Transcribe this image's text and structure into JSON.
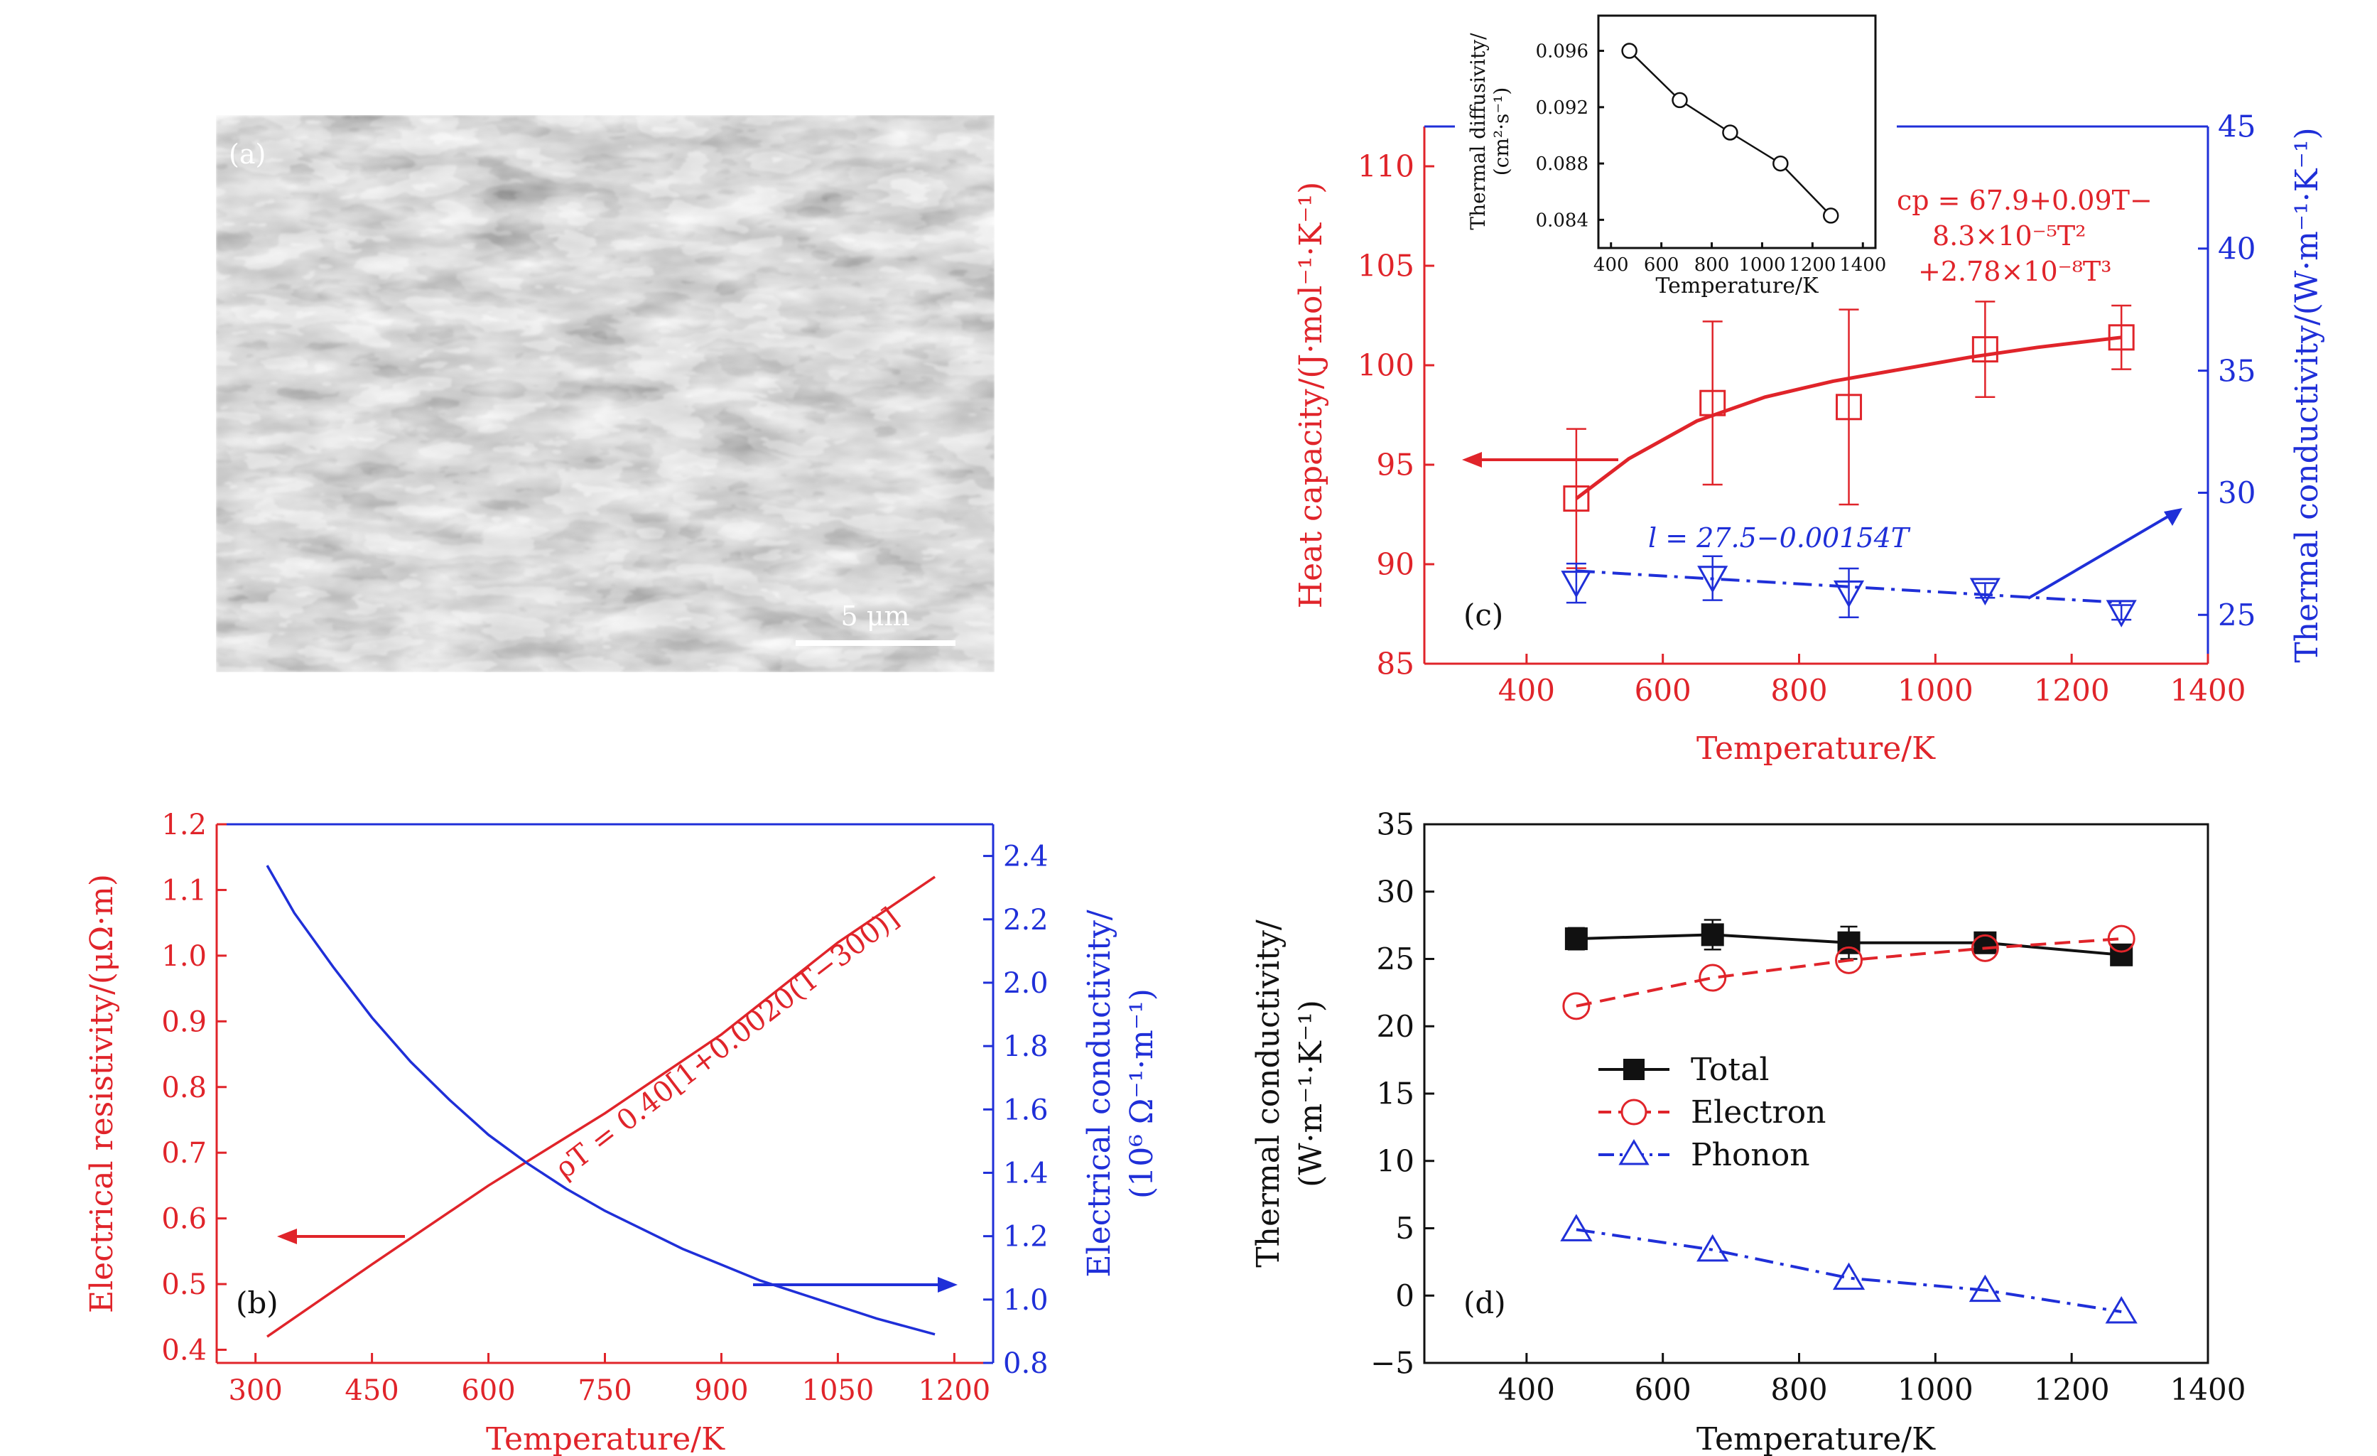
{
  "panels": {
    "a": {
      "label": "(a)",
      "scale_bar": "5 μm"
    },
    "b": {
      "label": "(b)",
      "annotation": "ρT = 0.40[1+0.0020(T−300)]",
      "colors": {
        "left": "#e0242a",
        "right": "#1f2fd8"
      }
    },
    "c": {
      "label": "(c)",
      "cp_formula": [
        "cp = 67.9+0.09T−",
        "8.3×10⁻⁵T²",
        "+2.78×10⁻⁸T³"
      ],
      "l_formula": "l = 27.5−0.00154T",
      "inset": {
        "xlabel": "Temperature/K",
        "ylabel": [
          "Thermal diffusivity/",
          "(cm²·s⁻¹)"
        ]
      }
    },
    "d": {
      "label": "(d)"
    }
  },
  "chart_data": [
    {
      "panel": "b",
      "type": "line",
      "title": "",
      "xlabel": "Temperature/K",
      "ylabel_left": "Electrical resistivity/(μΩ·m)",
      "ylabel_right": [
        "Electrical conductivity/",
        "(10⁶ Ω⁻¹·m⁻¹)"
      ],
      "xlim": [
        250,
        1250
      ],
      "ylim_left": [
        0.38,
        1.2
      ],
      "ylim_right": [
        0.8,
        2.5
      ],
      "xticks": [
        "300",
        "450",
        "600",
        "750",
        "900",
        "1050",
        "1200"
      ],
      "yticks_left": [
        "0.4",
        "0.5",
        "0.6",
        "0.7",
        "0.8",
        "0.9",
        "1.0",
        "1.1",
        "1.2"
      ],
      "yticks_right": [
        "0.8",
        "1.0",
        "1.2",
        "1.4",
        "1.6",
        "1.8",
        "2.0",
        "2.2",
        "2.4"
      ],
      "series": [
        {
          "axis": "left",
          "color": "#e0242a",
          "x": [
            315,
            450,
            600,
            750,
            900,
            1050,
            1175
          ],
          "y": [
            0.42,
            0.53,
            0.65,
            0.76,
            0.88,
            1.02,
            1.12
          ]
        },
        {
          "axis": "right",
          "color": "#1f2fd8",
          "x": [
            315,
            350,
            400,
            450,
            500,
            550,
            600,
            650,
            700,
            750,
            800,
            850,
            900,
            950,
            1000,
            1050,
            1100,
            1175
          ],
          "y": [
            2.37,
            2.22,
            2.05,
            1.89,
            1.75,
            1.63,
            1.52,
            1.43,
            1.35,
            1.28,
            1.22,
            1.16,
            1.11,
            1.06,
            1.02,
            0.98,
            0.94,
            0.89
          ]
        }
      ]
    },
    {
      "panel": "c",
      "type": "scatter",
      "title": "",
      "xlabel": "Temperature/K",
      "ylabel_left": "Heat capacity/(J·mol⁻¹·K⁻¹)",
      "ylabel_right": "Thermal conductivity/(W·m⁻¹·K⁻¹)",
      "xlim": [
        250,
        1400
      ],
      "ylim_left": [
        85,
        112
      ],
      "ylim_right": [
        23,
        45
      ],
      "xticks": [
        "400",
        "600",
        "800",
        "1000",
        "1200",
        "1400"
      ],
      "yticks_left": [
        "85",
        "90",
        "95",
        "100",
        "105",
        "110"
      ],
      "yticks_right": [
        "25",
        "30",
        "35",
        "40",
        "45"
      ],
      "series": [
        {
          "axis": "left",
          "marker": "square",
          "color": "#e0242a",
          "x": [
            473,
            673,
            873,
            1073,
            1273
          ],
          "y": [
            93.3,
            98.1,
            97.9,
            100.8,
            101.4
          ],
          "err": [
            3.5,
            4.1,
            4.9,
            2.4,
            1.6
          ]
        },
        {
          "axis": "right",
          "marker": "triangle-down",
          "color": "#1f2fd8",
          "x": [
            473,
            673,
            873,
            1073,
            1273
          ],
          "y": [
            26.3,
            26.5,
            25.9,
            26.0,
            25.1
          ],
          "err": [
            0.8,
            0.9,
            1.0,
            0.3,
            0.3
          ]
        }
      ],
      "fits": [
        {
          "axis": "left",
          "color": "#e0242a",
          "x": [
            473,
            550,
            650,
            750,
            850,
            950,
            1050,
            1150,
            1273
          ],
          "y": [
            93.3,
            95.3,
            97.2,
            98.4,
            99.2,
            99.8,
            100.4,
            100.9,
            101.4
          ]
        },
        {
          "axis": "right",
          "color": "#1f2fd8",
          "x": [
            473,
            1273
          ],
          "y": [
            26.8,
            25.5
          ]
        }
      ]
    },
    {
      "panel": "c-inset",
      "type": "line",
      "title": "",
      "xlabel": "Temperature/K",
      "ylabel": "Thermal diffusivity/(cm²·s⁻¹)",
      "xlim": [
        350,
        1450
      ],
      "ylim": [
        0.082,
        0.0985
      ],
      "xticks": [
        "400",
        "600",
        "800",
        "1000",
        "1200",
        "1400"
      ],
      "yticks": [
        "0.084",
        "0.088",
        "0.092",
        "0.096"
      ],
      "x": [
        473,
        673,
        873,
        1073,
        1273
      ],
      "y": [
        0.096,
        0.0925,
        0.0902,
        0.088,
        0.0843
      ]
    },
    {
      "panel": "d",
      "type": "line",
      "title": "",
      "xlabel": "Temperature/K",
      "ylabel": [
        "Thermal conductivity/",
        "(W·m⁻¹·K⁻¹)"
      ],
      "xlim": [
        250,
        1400
      ],
      "ylim": [
        -5,
        35
      ],
      "xticks": [
        "400",
        "600",
        "800",
        "1000",
        "1200",
        "1400"
      ],
      "yticks": [
        "−5",
        "0",
        "5",
        "10",
        "15",
        "20",
        "25",
        "30",
        "35"
      ],
      "legend_position": "center-left",
      "x": [
        473,
        673,
        873,
        1073,
        1273
      ],
      "series": [
        {
          "name": "Total",
          "color": "#111111",
          "marker": "filled-square",
          "dash": "solid",
          "y": [
            26.5,
            26.8,
            26.2,
            26.2,
            25.3
          ],
          "err": [
            0.8,
            1.1,
            1.2,
            0.5,
            0.4
          ]
        },
        {
          "name": "Electron",
          "color": "#e0242a",
          "marker": "circle",
          "dash": "dashed",
          "y": [
            21.5,
            23.6,
            24.9,
            25.8,
            26.5
          ]
        },
        {
          "name": "Phonon",
          "color": "#1f2fd8",
          "marker": "triangle",
          "dash": "dashdot",
          "y": [
            4.9,
            3.4,
            1.3,
            0.4,
            -1.2
          ]
        }
      ]
    }
  ]
}
